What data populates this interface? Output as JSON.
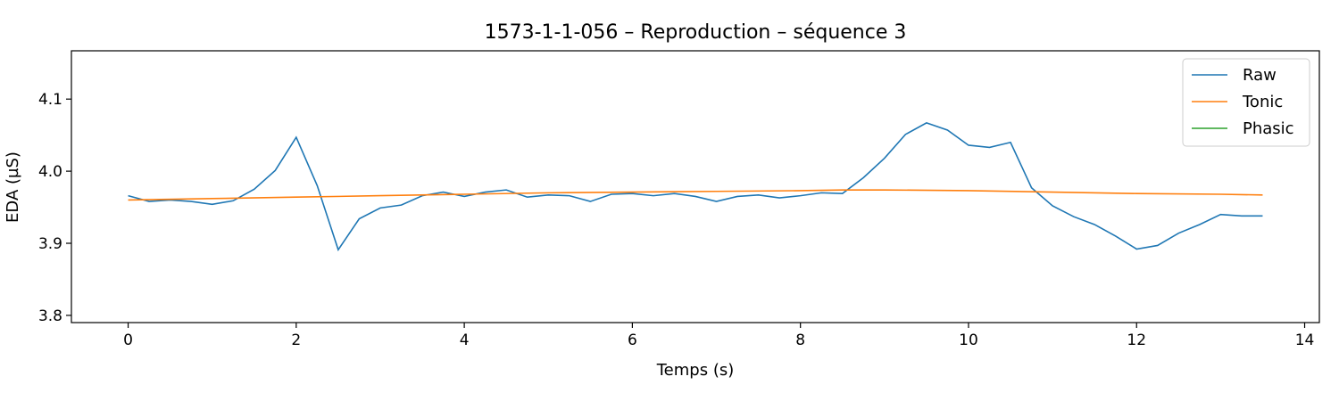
{
  "chart_data": {
    "type": "line",
    "title": "1573-1-1-056 – Reproduction – séquence 3",
    "xlabel": "Temps (s)",
    "ylabel": "EDA (µS)",
    "xlim": [
      -0.675,
      14.175
    ],
    "ylim": [
      3.79,
      4.167
    ],
    "xticks": [
      0,
      2,
      4,
      6,
      8,
      10,
      12,
      14
    ],
    "yticks": [
      3.8,
      3.9,
      4.0,
      4.1
    ],
    "xtick_labels": [
      "0",
      "2",
      "4",
      "6",
      "8",
      "10",
      "12",
      "14"
    ],
    "ytick_labels": [
      "3.8",
      "3.9",
      "4.0",
      "4.1"
    ],
    "grid": false,
    "legend_position": "top-right",
    "series": [
      {
        "name": "Raw",
        "color": "#1f77b4",
        "x": [
          0,
          0.25,
          0.5,
          0.75,
          1.0,
          1.25,
          1.5,
          1.75,
          2.0,
          2.25,
          2.5,
          2.75,
          3.0,
          3.25,
          3.5,
          3.75,
          4.0,
          4.25,
          4.5,
          4.75,
          5.0,
          5.25,
          5.5,
          5.75,
          6.0,
          6.25,
          6.5,
          6.75,
          7.0,
          7.25,
          7.5,
          7.75,
          8.0,
          8.25,
          8.5,
          8.75,
          9.0,
          9.25,
          9.5,
          9.75,
          10.0,
          10.25,
          10.5,
          10.75,
          11.0,
          11.25,
          11.5,
          11.75,
          12.0,
          12.25,
          12.5,
          12.75,
          13.0,
          13.25,
          13.5
        ],
        "y": [
          3.966,
          3.958,
          3.96,
          3.958,
          3.954,
          3.959,
          3.975,
          4.001,
          4.047,
          3.98,
          3.891,
          3.934,
          3.949,
          3.953,
          3.966,
          3.971,
          3.965,
          3.971,
          3.974,
          3.964,
          3.967,
          3.966,
          3.958,
          3.968,
          3.969,
          3.966,
          3.969,
          3.965,
          3.958,
          3.965,
          3.967,
          3.963,
          3.966,
          3.97,
          3.969,
          3.991,
          4.018,
          4.051,
          4.067,
          4.057,
          4.036,
          4.033,
          4.04,
          3.977,
          3.952,
          3.937,
          3.926,
          3.91,
          3.892,
          3.897,
          3.914,
          3.926,
          3.94,
          3.938,
          3.938
        ]
      },
      {
        "name": "Tonic",
        "color": "#ff7f0e",
        "x": [
          0,
          1,
          2,
          3,
          4,
          5,
          6,
          7,
          8,
          8.5,
          9,
          10,
          11,
          12,
          13,
          13.5
        ],
        "y": [
          3.96,
          3.962,
          3.964,
          3.966,
          3.968,
          3.97,
          3.971,
          3.972,
          3.973,
          3.974,
          3.974,
          3.973,
          3.971,
          3.969,
          3.968,
          3.967
        ]
      },
      {
        "name": "Phasic",
        "color": "#2ca02c",
        "x": [],
        "y": []
      }
    ]
  }
}
